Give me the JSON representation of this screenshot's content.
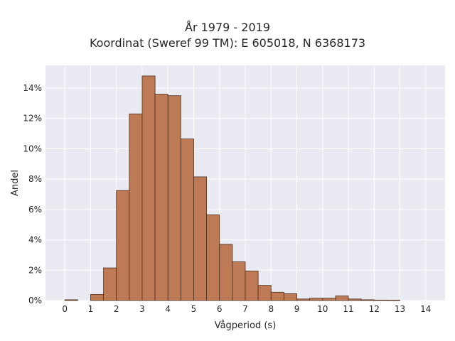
{
  "chart_data": {
    "type": "bar",
    "title": "År 1979 - 2019",
    "subtitle": "Koordinat (Sweref 99 TM): E 605018, N 6368173",
    "xlabel": "Vågperiod (s)",
    "ylabel": "Andel",
    "xlim": [
      -0.75,
      14.75
    ],
    "ylim": [
      0,
      15.5
    ],
    "x_ticks": [
      0,
      1,
      2,
      3,
      4,
      5,
      6,
      7,
      8,
      9,
      10,
      11,
      12,
      13,
      14
    ],
    "y_ticks": [
      0,
      2,
      4,
      6,
      8,
      10,
      12,
      14
    ],
    "y_tick_labels": [
      "0%",
      "2%",
      "4%",
      "6%",
      "8%",
      "10%",
      "12%",
      "14%"
    ],
    "bin_width": 0.5,
    "bins": [
      {
        "start": 0.0,
        "value": 0.05
      },
      {
        "start": 0.5,
        "value": 0.0
      },
      {
        "start": 1.0,
        "value": 0.4
      },
      {
        "start": 1.5,
        "value": 2.15
      },
      {
        "start": 2.0,
        "value": 7.25
      },
      {
        "start": 2.5,
        "value": 12.3
      },
      {
        "start": 3.0,
        "value": 14.8
      },
      {
        "start": 3.5,
        "value": 13.6
      },
      {
        "start": 4.0,
        "value": 13.5
      },
      {
        "start": 4.5,
        "value": 10.65
      },
      {
        "start": 5.0,
        "value": 8.15
      },
      {
        "start": 5.5,
        "value": 5.65
      },
      {
        "start": 6.0,
        "value": 3.7
      },
      {
        "start": 6.5,
        "value": 2.55
      },
      {
        "start": 7.0,
        "value": 1.95
      },
      {
        "start": 7.5,
        "value": 1.0
      },
      {
        "start": 8.0,
        "value": 0.55
      },
      {
        "start": 8.5,
        "value": 0.45
      },
      {
        "start": 9.0,
        "value": 0.1
      },
      {
        "start": 9.5,
        "value": 0.15
      },
      {
        "start": 10.0,
        "value": 0.15
      },
      {
        "start": 10.5,
        "value": 0.3
      },
      {
        "start": 11.0,
        "value": 0.1
      },
      {
        "start": 11.5,
        "value": 0.05
      },
      {
        "start": 12.0,
        "value": 0.03
      },
      {
        "start": 12.5,
        "value": 0.02
      },
      {
        "start": 13.0,
        "value": 0.0
      },
      {
        "start": 13.5,
        "value": 0.0
      },
      {
        "start": 14.0,
        "value": 0.0
      }
    ],
    "grid": true,
    "colors": {
      "bar_fill": "#be7a55",
      "bar_edge": "#4a2e1e",
      "plot_background": "#eaeaf2",
      "grid": "#ffffff"
    }
  }
}
